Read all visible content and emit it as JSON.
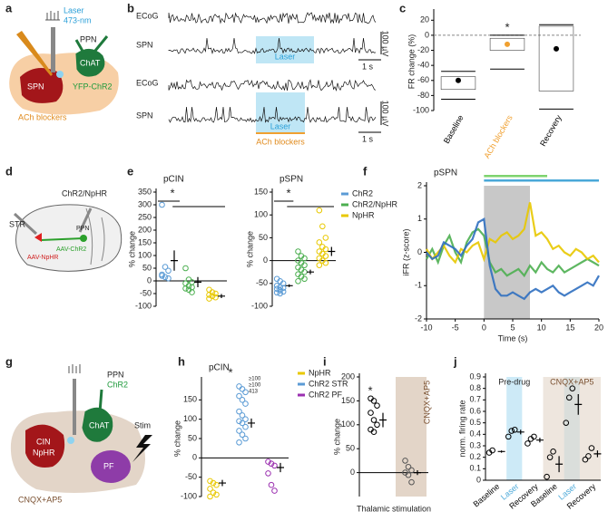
{
  "panel_labels": [
    "a",
    "b",
    "c",
    "d",
    "e",
    "f",
    "g",
    "h",
    "i",
    "j"
  ],
  "diagram_a": {
    "laser": "Laser",
    "wavelength": "473-nm",
    "ppn": "PPN",
    "chat": "ChAT",
    "spn": "SPN",
    "yfp": "YFP-ChR2",
    "blockers": "ACh blockers"
  },
  "traces_b": {
    "ecog": "ECoG",
    "spn": "SPN",
    "laser": "Laser",
    "scale_v": "100 µV",
    "scale_t": "1 s",
    "blockers": "ACh blockers"
  },
  "diagram_d": {
    "title": "ChR2/NpHR",
    "str": "STR",
    "ppn": "PPN",
    "nphr": "AAV-NpHR",
    "chr2": "AAV-ChR2"
  },
  "diagram_g": {
    "ppn": "PPN",
    "chr2": "ChR2",
    "chat": "ChAT",
    "cin": "CIN",
    "nphr": "NpHR",
    "stim": "Stim",
    "pf": "PF",
    "blockers": "CNQX+AP5"
  },
  "chart_data": [
    {
      "type": "box",
      "ylabel": "FR change (%)",
      "categories": [
        "Baseline",
        "ACh blockers",
        "Recovery"
      ],
      "category_colors": [
        "#000000",
        "#f0a030",
        "#000000"
      ],
      "dot_colors": [
        "#000000",
        "#f0a030",
        "#000000"
      ],
      "values": [
        -60,
        -12,
        -18
      ],
      "box_low": [
        -72,
        -20,
        -74
      ],
      "box_high": [
        -55,
        -4,
        12
      ],
      "min": [
        -85,
        -45,
        -98
      ],
      "max": [
        -48,
        0,
        14
      ],
      "ylim": [
        -100,
        30
      ],
      "yticks": [
        20,
        0,
        -20,
        -40,
        -60,
        -80,
        -100
      ],
      "annotation": "*",
      "zero_line": true
    },
    {
      "type": "strip",
      "title": "pCIN",
      "ylabel": "% change",
      "ylim": [
        -100,
        350
      ],
      "yticks": [
        -100,
        -50,
        0,
        50,
        100,
        150,
        200,
        250,
        300,
        350
      ],
      "series": [
        {
          "name": "ChR2",
          "color": "#5b9bd5",
          "values": [
            300,
            55,
            40,
            25,
            15,
            10,
            20
          ],
          "mean": 80,
          "error": 40
        },
        {
          "name": "ChR2/NpHR",
          "color": "#4caf50",
          "values": [
            50,
            5,
            -5,
            -10,
            -20,
            -25,
            -30,
            -35,
            -45
          ],
          "mean": -5,
          "error": 20
        },
        {
          "name": "NpHR",
          "color": "#e8c800",
          "values": [
            -35,
            -45,
            -50,
            -55,
            -60,
            -65,
            -70
          ],
          "mean": -60,
          "error": 8
        }
      ],
      "annotation": "*",
      "zero_line": true
    },
    {
      "type": "strip",
      "title": "pSPN",
      "ylabel": "% change",
      "ylim": [
        -100,
        150
      ],
      "yticks": [
        -100,
        -50,
        0,
        50,
        100,
        150
      ],
      "series": [
        {
          "name": "ChR2",
          "color": "#5b9bd5",
          "values": [
            -40,
            -45,
            -50,
            -55,
            -58,
            -60,
            -62,
            -65,
            -68,
            -70,
            -72
          ],
          "mean": -55,
          "error": 3
        },
        {
          "name": "ChR2/NpHR",
          "color": "#4caf50",
          "values": [
            20,
            10,
            5,
            0,
            -5,
            -10,
            -15,
            -20,
            -25,
            -30,
            -35,
            -40,
            -45
          ],
          "mean": -25,
          "error": 5
        },
        {
          "name": "NpHR",
          "color": "#e8c800",
          "values": [
            110,
            75,
            50,
            40,
            30,
            25,
            20,
            15,
            10,
            5,
            0,
            -5,
            -10
          ],
          "mean": 20,
          "error": 10
        }
      ],
      "annotation": "*",
      "zero_line": true,
      "legend": true
    },
    {
      "type": "line",
      "title": "pSPN",
      "xlabel": "Time (s)",
      "ylabel": "iFR (z-score)",
      "xlim": [
        -10,
        20
      ],
      "ylim": [
        -2,
        2
      ],
      "xticks": [
        -10,
        -5,
        0,
        5,
        10,
        15,
        20
      ],
      "yticks": [
        -2,
        -1,
        0,
        1,
        2
      ],
      "x": [
        -10,
        -9,
        -8,
        -7,
        -6,
        -5,
        -4,
        -3,
        -2,
        -1,
        0,
        1,
        2,
        3,
        4,
        5,
        6,
        7,
        8,
        9,
        10,
        11,
        12,
        13,
        14,
        15,
        16,
        17,
        18,
        19,
        20
      ],
      "series": [
        {
          "name": "ChR2/NpHR",
          "color": "#4caf50",
          "values": [
            -0.2,
            0.1,
            -0.3,
            0.2,
            0.5,
            0.0,
            -0.3,
            0.3,
            0.6,
            0.7,
            0.5,
            -0.3,
            -0.6,
            -0.5,
            -0.7,
            -0.6,
            -0.5,
            -0.7,
            -0.4,
            -0.6,
            -0.3,
            -0.5,
            -0.6,
            -0.4,
            -0.6,
            -0.5,
            -0.4,
            -0.3,
            -0.2,
            -0.3,
            -0.4
          ]
        },
        {
          "name": "NpHR",
          "color": "#e8c800",
          "values": [
            0.1,
            -0.2,
            0.0,
            0.2,
            -0.1,
            -0.3,
            0.1,
            0.0,
            0.2,
            0.3,
            -0.2,
            0.4,
            0.3,
            0.5,
            0.6,
            0.4,
            0.5,
            0.7,
            1.5,
            0.5,
            0.6,
            0.4,
            0.1,
            0.2,
            0.0,
            -0.1,
            0.1,
            0.0,
            -0.2,
            -0.1,
            -0.3
          ]
        },
        {
          "name": "ChR2",
          "color": "#2f6fc0",
          "values": [
            0.0,
            -0.2,
            -0.1,
            0.3,
            0.2,
            0.1,
            -0.1,
            0.2,
            0.4,
            0.9,
            1.0,
            -0.4,
            -1.1,
            -1.3,
            -1.3,
            -1.2,
            -1.3,
            -1.4,
            -1.2,
            -1.1,
            -1.2,
            -1.1,
            -1.0,
            -1.2,
            -1.3,
            -1.2,
            -1.1,
            -1.0,
            -0.9,
            -1.0,
            -0.7
          ]
        }
      ],
      "shade": [
        0,
        8
      ],
      "bars": [
        {
          "color": "#7ed36e",
          "range": [
            0,
            11
          ]
        },
        {
          "color": "#4aa8d8",
          "range": [
            0,
            20
          ]
        }
      ]
    },
    {
      "type": "strip",
      "title": "pCIN",
      "ylabel": "% change",
      "ylim": [
        -100,
        200
      ],
      "yticks": [
        -100,
        -50,
        0,
        50,
        100,
        150
      ],
      "series": [
        {
          "name": "NpHR",
          "color": "#e8c800",
          "values": [
            -60,
            -65,
            -70,
            -80,
            -90,
            -95,
            -100
          ],
          "mean": -65,
          "error": 8
        },
        {
          "name": "ChR2 STR",
          "color": "#5b9bd5",
          "values": [
            185,
            178,
            170,
            160,
            150,
            140,
            120,
            110,
            100,
            95,
            90,
            80,
            70,
            60,
            50,
            40
          ],
          "mean": 90,
          "error": 12
        },
        {
          "name": "ChR2 PF",
          "color": "#9b30b0",
          "values": [
            -10,
            -15,
            -20,
            -40,
            -70,
            -85
          ],
          "mean": -25,
          "error": 12
        }
      ],
      "annotation": "*",
      "zero_line": true,
      "legend": true,
      "point_labels": [
        "≥100",
        "≥100",
        "413"
      ]
    },
    {
      "type": "strip",
      "ylabel": "% change",
      "xlabel": "Thalamic stimulation",
      "ylim": [
        -50,
        200
      ],
      "yticks": [
        0,
        50,
        100,
        150,
        200
      ],
      "series": [
        {
          "color": "#000000",
          "values": [
            155,
            150,
            140,
            125,
            110,
            100,
            90,
            85
          ],
          "mean": 110,
          "error": 15
        },
        {
          "color": "#555555",
          "values": [
            25,
            12,
            5,
            0,
            -5,
            -20
          ],
          "mean": 0,
          "error": 5
        }
      ],
      "annotation": "*",
      "zero_line": true,
      "shade_label": "CNQX+AP5"
    },
    {
      "type": "strip",
      "ylabel": "norm. firing rate",
      "ylim": [
        0,
        0.9
      ],
      "yticks": [
        0,
        0.1,
        0.2,
        0.3,
        0.4,
        0.5,
        0.6,
        0.7,
        0.8,
        0.9
      ],
      "categories": [
        "Baseline",
        "Laser",
        "Recovery",
        "Baseline",
        "Laser",
        "Recovery"
      ],
      "category_colors": [
        "#000000",
        "#4aa8d8",
        "#000000",
        "#000000",
        "#4aa8d8",
        "#000000"
      ],
      "group_labels": [
        "Pre-drug",
        "CNQX+AP5"
      ],
      "series": [
        {
          "color": "#000000",
          "values": [
            0.24,
            0.26
          ],
          "mean": 0.25,
          "error": 0.01
        },
        {
          "color": "#000000",
          "values": [
            0.38,
            0.43,
            0.44
          ],
          "mean": 0.42,
          "error": 0.02
        },
        {
          "color": "#000000",
          "values": [
            0.32,
            0.36,
            0.38
          ],
          "mean": 0.35,
          "error": 0.02
        },
        {
          "color": "#000000",
          "values": [
            0.03,
            0.2,
            0.25
          ],
          "mean": 0.14,
          "error": 0.07
        },
        {
          "color": "#000000",
          "values": [
            0.5,
            0.72,
            0.8
          ],
          "mean": 0.66,
          "error": 0.09
        },
        {
          "color": "#000000",
          "values": [
            0.18,
            0.21,
            0.28
          ],
          "mean": 0.23,
          "error": 0.03
        }
      ]
    }
  ]
}
